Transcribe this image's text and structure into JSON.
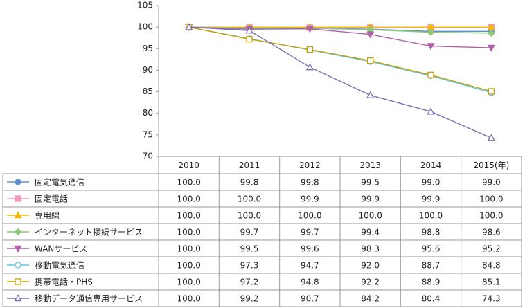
{
  "chart_data": {
    "type": "line",
    "categories": [
      "2010",
      "2011",
      "2012",
      "2013",
      "2014",
      "2015(年)"
    ],
    "ylim": [
      70,
      105
    ],
    "yticks": [
      70,
      75,
      80,
      85,
      90,
      95,
      100,
      105
    ],
    "grid": false,
    "series": [
      {
        "name": "固定電気通信",
        "color": "#5b8fd1",
        "marker": "circle",
        "filled": true,
        "values": [
          100,
          99.8,
          99.8,
          99.5,
          99.0,
          99.0
        ],
        "value_labels": [
          "100.0",
          "99.8",
          "99.8",
          "99.5",
          "99.0",
          "99.0"
        ]
      },
      {
        "name": "固定電話",
        "color": "#f49ac1",
        "marker": "square",
        "filled": true,
        "values": [
          100,
          100,
          99.9,
          99.9,
          99.9,
          100
        ],
        "value_labels": [
          "100.0",
          "100.0",
          "99.9",
          "99.9",
          "99.9",
          "100.0"
        ]
      },
      {
        "name": "専用線",
        "color": "#f5b800",
        "marker": "triangle",
        "filled": true,
        "values": [
          100,
          100,
          100,
          100,
          100,
          100
        ],
        "value_labels": [
          "100.0",
          "100.0",
          "100.0",
          "100.0",
          "100.0",
          "100.0"
        ]
      },
      {
        "name": "インターネット接続サービス",
        "color": "#8cc97a",
        "marker": "diamond",
        "filled": true,
        "values": [
          100,
          99.7,
          99.7,
          99.4,
          98.8,
          98.6
        ],
        "value_labels": [
          "100.0",
          "99.7",
          "99.7",
          "99.4",
          "98.8",
          "98.6"
        ]
      },
      {
        "name": "WANサービス",
        "color": "#b05fa8",
        "marker": "triangle-down",
        "filled": true,
        "values": [
          100,
          99.5,
          99.6,
          98.3,
          95.6,
          95.2
        ],
        "value_labels": [
          "100.0",
          "99.5",
          "99.6",
          "98.3",
          "95.6",
          "95.2"
        ]
      },
      {
        "name": "移動電気通信",
        "color": "#5cc5ea",
        "marker": "circle",
        "filled": false,
        "values": [
          100,
          97.3,
          94.7,
          92.0,
          88.7,
          84.8
        ],
        "value_labels": [
          "100.0",
          "97.3",
          "94.7",
          "92.0",
          "88.7",
          "84.8"
        ]
      },
      {
        "name": "携帯電話・PHS",
        "color": "#c9a000",
        "marker": "square",
        "filled": false,
        "values": [
          100,
          97.2,
          94.8,
          92.2,
          88.9,
          85.1
        ],
        "value_labels": [
          "100.0",
          "97.2",
          "94.8",
          "92.2",
          "88.9",
          "85.1"
        ]
      },
      {
        "name": "移動データ通信専用サービス",
        "color": "#7b6db0",
        "marker": "triangle",
        "filled": false,
        "values": [
          100,
          99.2,
          90.7,
          84.2,
          80.4,
          74.3
        ],
        "value_labels": [
          "100.0",
          "99.2",
          "90.7",
          "84.2",
          "80.4",
          "74.3"
        ]
      }
    ]
  }
}
